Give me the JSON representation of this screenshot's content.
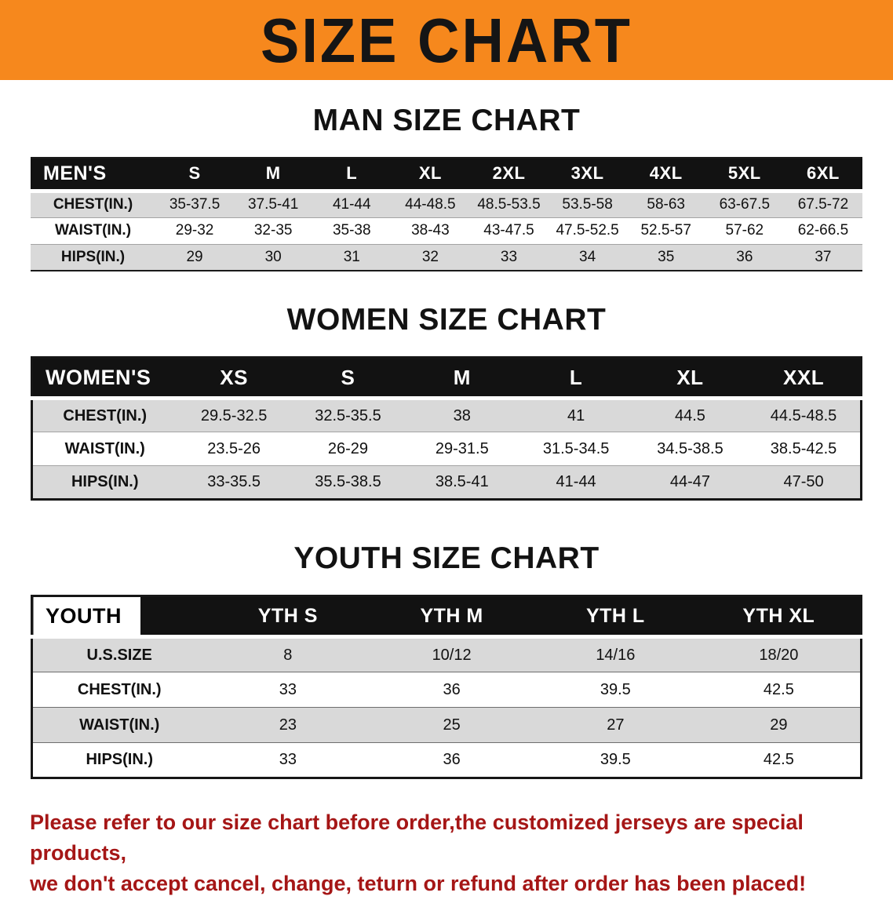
{
  "banner": {
    "title": "SIZE CHART"
  },
  "sections": {
    "men": {
      "heading": "MAN SIZE CHART"
    },
    "women": {
      "heading": "WOMEN SIZE CHART"
    },
    "youth": {
      "heading": "YOUTH SIZE CHART"
    }
  },
  "tables": {
    "men": {
      "header": [
        "MEN'S",
        "S",
        "M",
        "L",
        "XL",
        "2XL",
        "3XL",
        "4XL",
        "5XL",
        "6XL"
      ],
      "rows": [
        [
          "CHEST(IN.)",
          "35-37.5",
          "37.5-41",
          "41-44",
          "44-48.5",
          "48.5-53.5",
          "53.5-58",
          "58-63",
          "63-67.5",
          "67.5-72"
        ],
        [
          "WAIST(IN.)",
          "29-32",
          "32-35",
          "35-38",
          "38-43",
          "43-47.5",
          "47.5-52.5",
          "52.5-57",
          "57-62",
          "62-66.5"
        ],
        [
          "HIPS(IN.)",
          "29",
          "30",
          "31",
          "32",
          "33",
          "34",
          "35",
          "36",
          "37"
        ]
      ]
    },
    "women": {
      "header": [
        "WOMEN'S",
        "XS",
        "S",
        "M",
        "L",
        "XL",
        "XXL"
      ],
      "rows": [
        [
          "CHEST(IN.)",
          "29.5-32.5",
          "32.5-35.5",
          "38",
          "41",
          "44.5",
          "44.5-48.5"
        ],
        [
          "WAIST(IN.)",
          "23.5-26",
          "26-29",
          "29-31.5",
          "31.5-34.5",
          "34.5-38.5",
          "38.5-42.5"
        ],
        [
          "HIPS(IN.)",
          "33-35.5",
          "35.5-38.5",
          "38.5-41",
          "41-44",
          "44-47",
          "47-50"
        ]
      ]
    },
    "youth": {
      "header": [
        "YOUTH",
        "YTH S",
        "YTH M",
        "YTH L",
        "YTH XL"
      ],
      "rows": [
        [
          "U.S.SIZE",
          "8",
          "10/12",
          "14/16",
          "18/20"
        ],
        [
          "CHEST(IN.)",
          "33",
          "36",
          "39.5",
          "42.5"
        ],
        [
          "WAIST(IN.)",
          "23",
          "25",
          "27",
          "29"
        ],
        [
          "HIPS(IN.)",
          "33",
          "36",
          "39.5",
          "42.5"
        ]
      ]
    }
  },
  "footer": {
    "line1": "Please refer to our size chart before order,the customized jerseys are special products,",
    "line2": "we don't accept cancel, change, teturn or refund after order has been placed!"
  },
  "colors": {
    "banner_bg": "#f6881d",
    "table_header_bg": "#121212",
    "row_alt_bg": "#d9d9d9",
    "notice_text": "#a51616"
  }
}
